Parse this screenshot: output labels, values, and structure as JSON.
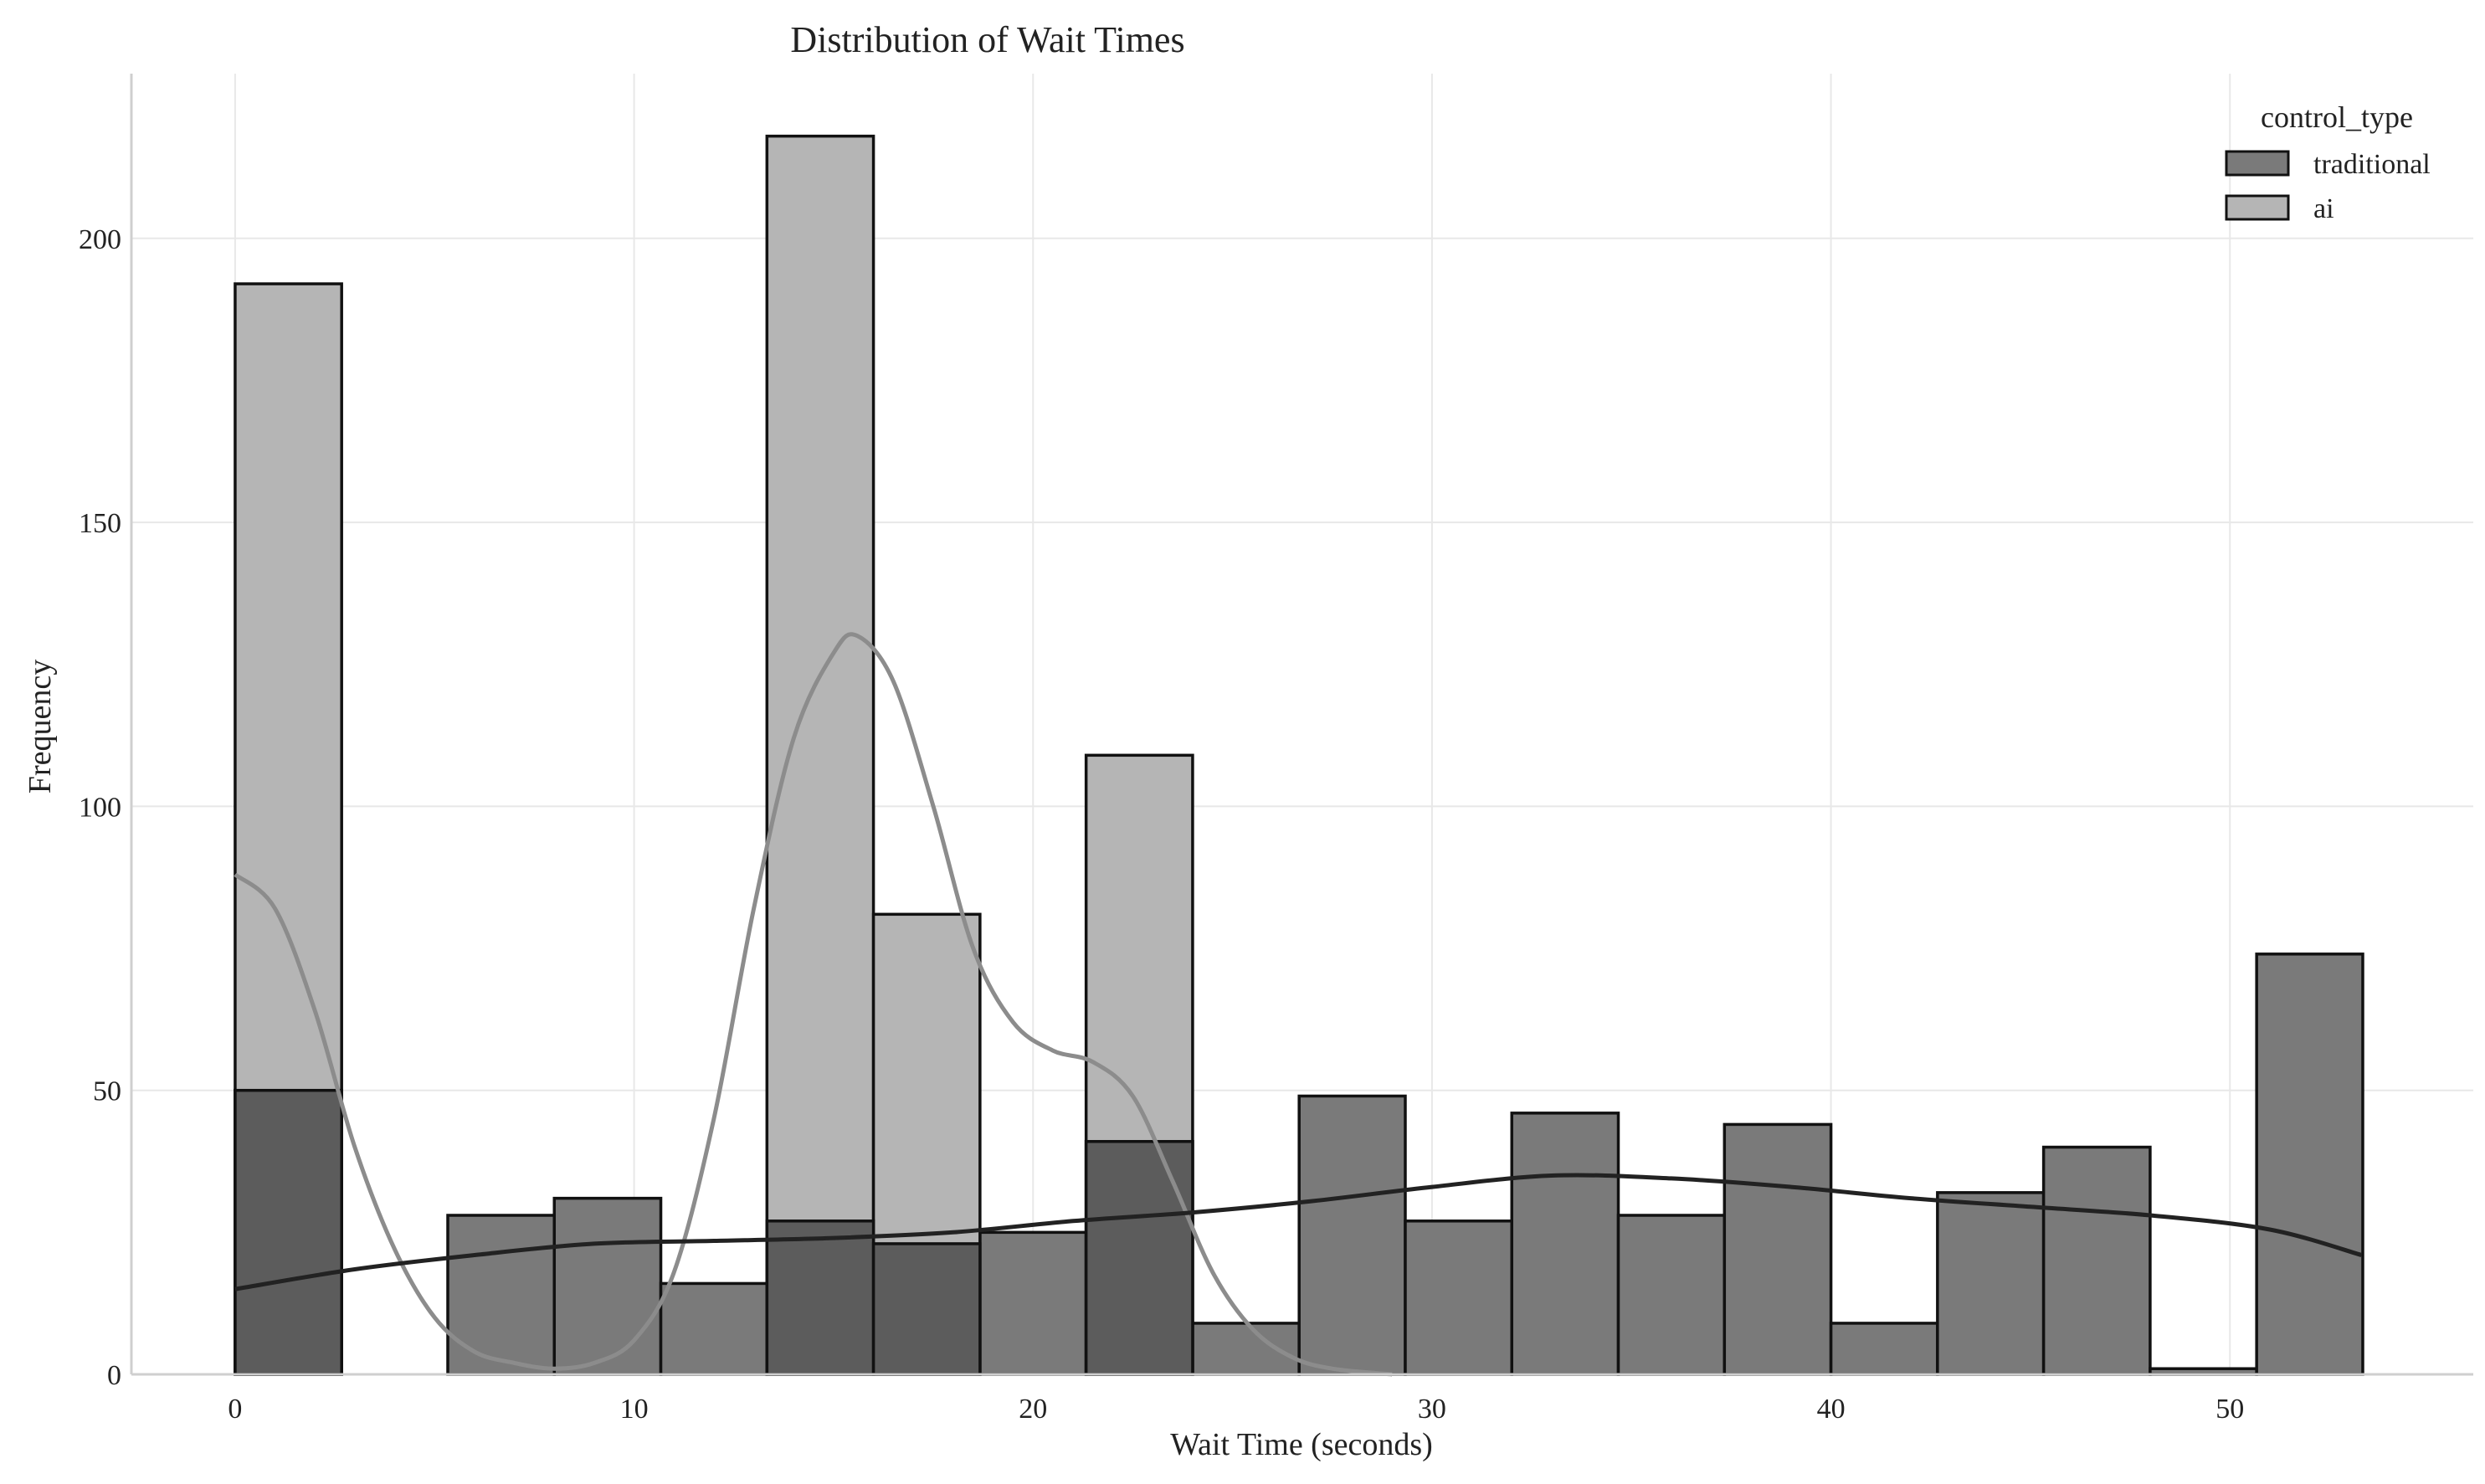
{
  "chart_data": {
    "type": "bar",
    "title": "Distribution of Wait Times",
    "xlabel": "Wait Time (seconds)",
    "ylabel": "Frequency",
    "xlim": [
      -2.6,
      56.1
    ],
    "ylim": [
      0,
      229
    ],
    "xticks": [
      0,
      10,
      20,
      30,
      40,
      50
    ],
    "yticks": [
      0,
      50,
      100,
      150,
      200
    ],
    "grid": true,
    "legend": {
      "title": "control_type",
      "placement": "top-right"
    },
    "bin_edges": [
      0,
      2.67,
      5.33,
      8.0,
      10.67,
      13.33,
      16.0,
      18.67,
      21.33,
      24.0,
      26.67,
      29.33,
      32.0,
      34.67,
      37.33,
      40.0,
      42.67,
      45.33,
      48.0,
      50.67,
      53.33
    ],
    "series": [
      {
        "name": "traditional",
        "color": "#7a7a7a",
        "values": [
          50,
          0,
          28,
          31,
          16,
          27,
          23,
          25,
          41,
          9,
          49,
          27,
          46,
          28,
          44,
          9,
          32,
          40,
          1,
          74
        ],
        "kde": [
          [
            0,
            15
          ],
          [
            3,
            18.5
          ],
          [
            6,
            21
          ],
          [
            9,
            23
          ],
          [
            12,
            23.5
          ],
          [
            15,
            24
          ],
          [
            18,
            25
          ],
          [
            21,
            27
          ],
          [
            24,
            28.5
          ],
          [
            27,
            30.5
          ],
          [
            30,
            33
          ],
          [
            33,
            35
          ],
          [
            36,
            34.5
          ],
          [
            39,
            33
          ],
          [
            42,
            31
          ],
          [
            45,
            29.5
          ],
          [
            48,
            28
          ],
          [
            51,
            25.5
          ],
          [
            53.3,
            21
          ]
        ]
      },
      {
        "name": "ai",
        "color": "#b5b5b5",
        "values": [
          192,
          0,
          0,
          0,
          0,
          218,
          81,
          0,
          109,
          0,
          0,
          0,
          0,
          0,
          0,
          0,
          0,
          0,
          0,
          0
        ],
        "kde": [
          [
            0,
            88
          ],
          [
            1,
            82
          ],
          [
            2,
            64
          ],
          [
            3,
            40
          ],
          [
            4,
            22
          ],
          [
            5,
            10
          ],
          [
            6,
            4
          ],
          [
            7,
            2
          ],
          [
            8,
            1
          ],
          [
            9,
            2
          ],
          [
            10,
            6
          ],
          [
            11,
            18
          ],
          [
            12,
            45
          ],
          [
            13,
            82
          ],
          [
            14,
            112
          ],
          [
            15,
            127
          ],
          [
            15.6,
            130
          ],
          [
            16.5,
            122
          ],
          [
            17.5,
            100
          ],
          [
            18.5,
            75
          ],
          [
            19.5,
            62
          ],
          [
            20.5,
            57
          ],
          [
            21.5,
            55
          ],
          [
            22.5,
            49
          ],
          [
            23.5,
            34
          ],
          [
            24.5,
            18
          ],
          [
            25.5,
            8
          ],
          [
            26.5,
            3
          ],
          [
            27.5,
            1
          ],
          [
            29,
            0
          ]
        ]
      }
    ]
  },
  "colors": {
    "traditional_kde": "#222222",
    "ai_kde": "#8c8c8c",
    "overlap": "#5c5c5c",
    "grid": "#e8e8e8",
    "axis": "#cfcfcf"
  }
}
